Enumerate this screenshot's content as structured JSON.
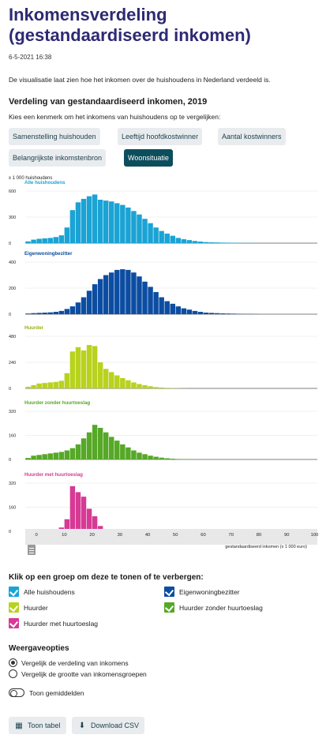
{
  "header": {
    "title": "Inkomensverdeling (gestandaardiseerd inkomen)",
    "date": "6-5-2021 16:38",
    "intro": "De visualisatie laat zien hoe het inkomen over de huishoudens in Nederland verdeeld is."
  },
  "chart_section": {
    "title": "Verdeling van gestandaardiseerd inkomen, 2019",
    "choose_text": "Kies een kenmerk om het inkomens van huishoudens op te vergelijken:",
    "tabs": [
      {
        "label": "Samenstelling huishouden",
        "active": false
      },
      {
        "label": "Leeftijd hoofdkostwinner",
        "active": false
      },
      {
        "label": "Aantal kostwinners",
        "active": false
      },
      {
        "label": "Belangrijkste inkomstenbron",
        "active": false
      },
      {
        "label": "Woonsituatie",
        "active": true
      }
    ]
  },
  "chart_data": {
    "type": "bar",
    "unit_label": "x 1 000 huishoudens",
    "xlabel": "gestandaardiseerd inkomen (x 1 000 euro)",
    "x_ticks": [
      0,
      10,
      20,
      30,
      40,
      50,
      60,
      70,
      80,
      90,
      100
    ],
    "xlim": [
      -4,
      101
    ],
    "bin_width": 2,
    "x": [
      -3,
      -1,
      1,
      3,
      5,
      7,
      9,
      11,
      13,
      15,
      17,
      19,
      21,
      23,
      25,
      27,
      29,
      31,
      33,
      35,
      37,
      39,
      41,
      43,
      45,
      47,
      49,
      51,
      53,
      55,
      57,
      59,
      61,
      63,
      65,
      67,
      69,
      71,
      73,
      75,
      77,
      79
    ],
    "series": [
      {
        "name": "Alle huishoudens",
        "color": "#1aa3d4",
        "y_ticks": [
          0,
          300,
          600
        ],
        "ylim": [
          0,
          600
        ],
        "values": [
          20,
          40,
          50,
          55,
          60,
          70,
          90,
          180,
          380,
          470,
          510,
          540,
          560,
          500,
          490,
          480,
          460,
          440,
          410,
          370,
          330,
          280,
          230,
          180,
          140,
          110,
          85,
          60,
          45,
          35,
          25,
          18,
          12,
          10,
          8,
          6,
          5,
          4,
          3,
          2,
          2,
          1
        ]
      },
      {
        "name": "Eigenwoningbezitter",
        "color": "#0c4da2",
        "y_ticks": [
          0,
          200,
          400
        ],
        "ylim": [
          0,
          400
        ],
        "values": [
          5,
          8,
          10,
          12,
          14,
          18,
          25,
          40,
          60,
          90,
          130,
          180,
          230,
          270,
          300,
          320,
          340,
          345,
          340,
          320,
          290,
          250,
          210,
          170,
          130,
          100,
          80,
          60,
          45,
          35,
          25,
          18,
          12,
          10,
          8,
          6,
          5,
          4,
          3,
          2,
          2,
          1
        ]
      },
      {
        "name": "Huurder",
        "color": "#b8d21e",
        "y_ticks": [
          0,
          240,
          480
        ],
        "ylim": [
          0,
          480
        ],
        "values": [
          15,
          30,
          45,
          50,
          55,
          60,
          70,
          140,
          340,
          380,
          350,
          400,
          390,
          240,
          180,
          150,
          120,
          95,
          75,
          55,
          40,
          30,
          20,
          12,
          8,
          5,
          3,
          2,
          1,
          0,
          0,
          0,
          0,
          0,
          0,
          0,
          0,
          0,
          0,
          0,
          0,
          0
        ]
      },
      {
        "name": "Huurder zonder huurtoeslag",
        "color": "#56a827",
        "y_ticks": [
          0,
          160,
          320
        ],
        "ylim": [
          0,
          320
        ],
        "values": [
          10,
          25,
          30,
          35,
          40,
          45,
          50,
          60,
          75,
          100,
          140,
          180,
          230,
          210,
          180,
          150,
          125,
          100,
          80,
          60,
          45,
          35,
          25,
          18,
          12,
          8,
          5,
          3,
          2,
          1,
          0,
          0,
          0,
          0,
          0,
          0,
          0,
          0,
          0,
          0,
          0,
          0
        ]
      },
      {
        "name": "Huurder met huurtoeslag",
        "color": "#d63a94",
        "y_ticks": [
          0,
          160,
          320
        ],
        "ylim": [
          0,
          320
        ],
        "values": [
          0,
          2,
          5,
          8,
          10,
          15,
          25,
          80,
          300,
          260,
          230,
          150,
          100,
          35,
          10,
          3,
          1,
          0,
          0,
          0,
          0,
          0,
          0,
          0,
          0,
          0,
          0,
          0,
          0,
          0,
          0,
          0,
          0,
          0,
          0,
          0,
          0,
          0,
          0,
          0,
          0,
          0
        ]
      }
    ]
  },
  "legend": {
    "title": "Klik op een groep om deze te tonen of te verbergen:",
    "items": [
      {
        "label": "Alle huishoudens",
        "color": "#1aa3d4"
      },
      {
        "label": "Eigenwoningbezitter",
        "color": "#0c4da2"
      },
      {
        "label": "Huurder",
        "color": "#b8d21e"
      },
      {
        "label": "Huurder zonder huurtoeslag",
        "color": "#56a827"
      },
      {
        "label": "Huurder met huurtoeslag",
        "color": "#d63a94"
      }
    ]
  },
  "options": {
    "title": "Weergaveopties",
    "radio1": "Vergelijk de verdeling van inkomens",
    "radio2": "Vergelijk de grootte van inkomensgroepen",
    "toggle": "Toon gemiddelden"
  },
  "buttons": {
    "table": "Toon tabel",
    "csv": "Download CSV"
  }
}
